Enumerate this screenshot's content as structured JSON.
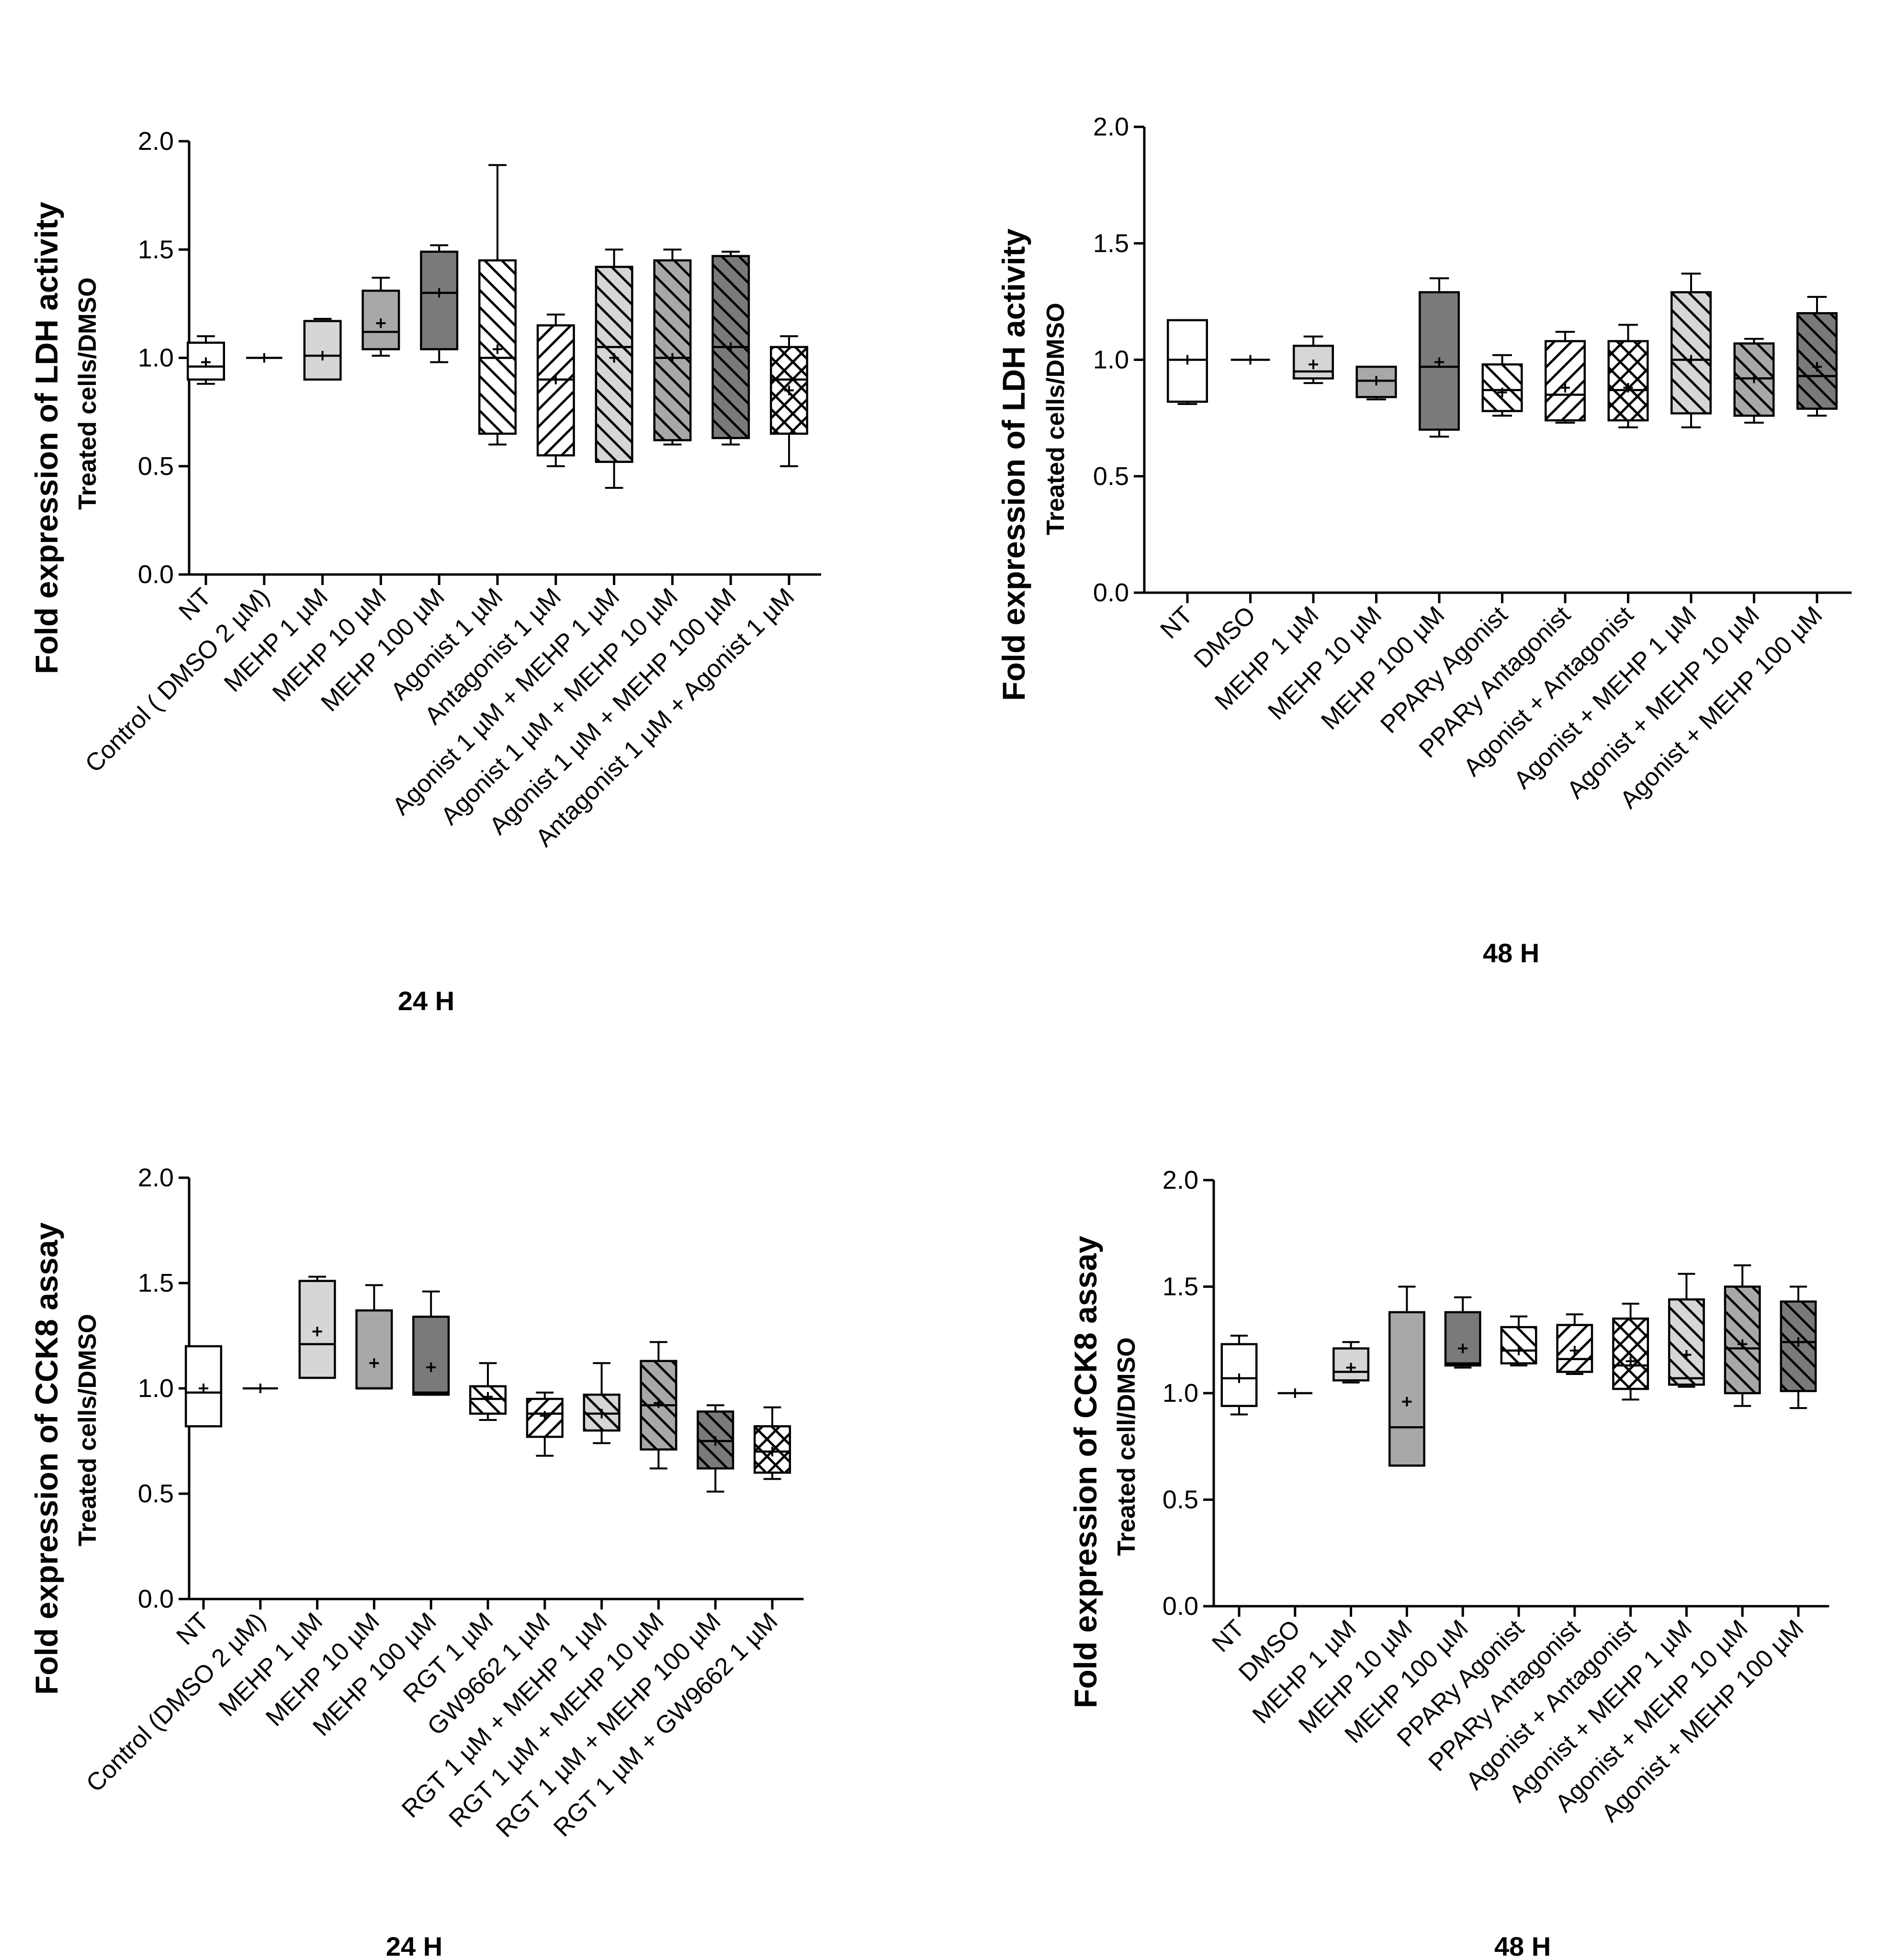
{
  "colors": {
    "white": "#ffffff",
    "light": "#d6d6d6",
    "mid": "#a8a8a8",
    "dark": "#7a7a7a",
    "stroke": "#000000"
  },
  "chart_data": [
    {
      "type": "box",
      "title": "",
      "ylabel_main": "Fold expression of  LDH activity",
      "ylabel_sub": "Treated cells/DMSO",
      "xlabel": "24 H",
      "ylim": [
        0,
        2
      ],
      "yticks": [
        "0.0",
        "0.5",
        "1.0",
        "1.5",
        "2.0"
      ],
      "boxes": [
        {
          "label": "NT",
          "min": 0.88,
          "q1": 0.9,
          "median": 0.96,
          "q3": 1.07,
          "max": 1.1,
          "mean": 0.98,
          "fill": "white",
          "pattern": "none"
        },
        {
          "label": "Control ( DMSO 2 µM)",
          "min": 1.0,
          "q1": 1.0,
          "median": 1.0,
          "q3": 1.0,
          "max": 1.0,
          "mean": 1.0,
          "fill": "white",
          "pattern": "none"
        },
        {
          "label": "MEHP 1 µM",
          "min": 0.9,
          "q1": 0.9,
          "median": 1.01,
          "q3": 1.17,
          "max": 1.18,
          "mean": 1.01,
          "fill": "light",
          "pattern": "none"
        },
        {
          "label": "MEHP 10 µM",
          "min": 1.01,
          "q1": 1.04,
          "median": 1.12,
          "q3": 1.31,
          "max": 1.37,
          "mean": 1.16,
          "fill": "mid",
          "pattern": "none"
        },
        {
          "label": "MEHP 100 µM",
          "min": 0.98,
          "q1": 1.04,
          "median": 1.3,
          "q3": 1.49,
          "max": 1.52,
          "mean": 1.3,
          "fill": "dark",
          "pattern": "none"
        },
        {
          "label": "Agonist 1 µM",
          "min": 0.6,
          "q1": 0.65,
          "median": 1.0,
          "q3": 1.45,
          "max": 1.89,
          "mean": 1.04,
          "fill": "white",
          "pattern": "back"
        },
        {
          "label": "Antagonist 1 µM",
          "min": 0.5,
          "q1": 0.55,
          "median": 0.9,
          "q3": 1.15,
          "max": 1.2,
          "mean": 0.9,
          "fill": "white",
          "pattern": "fwd"
        },
        {
          "label": "Agonist 1 µM + MEHP 1 µM",
          "min": 0.4,
          "q1": 0.52,
          "median": 1.05,
          "q3": 1.42,
          "max": 1.5,
          "mean": 1.0,
          "fill": "light",
          "pattern": "back"
        },
        {
          "label": "Agonist 1 µM + MEHP 10 µM",
          "min": 0.6,
          "q1": 0.62,
          "median": 1.0,
          "q3": 1.45,
          "max": 1.5,
          "mean": 1.0,
          "fill": "mid",
          "pattern": "back"
        },
        {
          "label": "Agonist 1 µM + MEHP 100 µM",
          "min": 0.6,
          "q1": 0.63,
          "median": 1.05,
          "q3": 1.47,
          "max": 1.49,
          "mean": 1.05,
          "fill": "dark",
          "pattern": "back"
        },
        {
          "label": "Antagonist 1 µM + Agonist 1 µM",
          "min": 0.5,
          "q1": 0.65,
          "median": 0.9,
          "q3": 1.05,
          "max": 1.1,
          "mean": 0.85,
          "fill": "white",
          "pattern": "cross"
        }
      ]
    },
    {
      "type": "box",
      "title": "",
      "ylabel_main": "Fold expression of  LDH activity",
      "ylabel_sub": "Treated cells/DMSO",
      "xlabel": "48 H",
      "ylim": [
        0,
        2
      ],
      "yticks": [
        "0.0",
        "0.5",
        "1.0",
        "1.5",
        "2.0"
      ],
      "boxes": [
        {
          "label": "NT",
          "min": 0.81,
          "q1": 0.82,
          "median": 1.0,
          "q3": 1.17,
          "max": 1.17,
          "mean": 1.0,
          "fill": "white",
          "pattern": "none"
        },
        {
          "label": "DMSO",
          "min": 1.0,
          "q1": 1.0,
          "median": 1.0,
          "q3": 1.0,
          "max": 1.0,
          "mean": 1.0,
          "fill": "white",
          "pattern": "none"
        },
        {
          "label": "MEHP 1 µM",
          "min": 0.9,
          "q1": 0.92,
          "median": 0.95,
          "q3": 1.06,
          "max": 1.1,
          "mean": 0.98,
          "fill": "light",
          "pattern": "none"
        },
        {
          "label": "MEHP 10 µM",
          "min": 0.83,
          "q1": 0.84,
          "median": 0.91,
          "q3": 0.97,
          "max": 0.97,
          "mean": 0.91,
          "fill": "mid",
          "pattern": "none"
        },
        {
          "label": "MEHP 100 µM",
          "min": 0.67,
          "q1": 0.7,
          "median": 0.97,
          "q3": 1.29,
          "max": 1.35,
          "mean": 0.99,
          "fill": "dark",
          "pattern": "none"
        },
        {
          "label": "PPARy Agonist",
          "min": 0.76,
          "q1": 0.78,
          "median": 0.87,
          "q3": 0.98,
          "max": 1.02,
          "mean": 0.86,
          "fill": "white",
          "pattern": "back"
        },
        {
          "label": "PPARy Antagonist",
          "min": 0.73,
          "q1": 0.74,
          "median": 0.85,
          "q3": 1.08,
          "max": 1.12,
          "mean": 0.88,
          "fill": "white",
          "pattern": "fwd"
        },
        {
          "label": "Agonist + Antagonist",
          "min": 0.71,
          "q1": 0.74,
          "median": 0.87,
          "q3": 1.08,
          "max": 1.15,
          "mean": 0.88,
          "fill": "white",
          "pattern": "cross"
        },
        {
          "label": "Agonist + MEHP 1 µM",
          "min": 0.71,
          "q1": 0.77,
          "median": 1.0,
          "q3": 1.29,
          "max": 1.37,
          "mean": 1.0,
          "fill": "light",
          "pattern": "back"
        },
        {
          "label": "Agonist + MEHP 10 µM",
          "min": 0.73,
          "q1": 0.76,
          "median": 0.92,
          "q3": 1.07,
          "max": 1.09,
          "mean": 0.92,
          "fill": "mid",
          "pattern": "back"
        },
        {
          "label": "Agonist + MEHP 100 µM",
          "min": 0.76,
          "q1": 0.79,
          "median": 0.93,
          "q3": 1.2,
          "max": 1.27,
          "mean": 0.97,
          "fill": "dark",
          "pattern": "back"
        }
      ]
    },
    {
      "type": "box",
      "title": "",
      "ylabel_main": "Fold expression of  CCK8 assay",
      "ylabel_sub": "Treated cells/DMSO",
      "xlabel": "24 H",
      "ylim": [
        0,
        2
      ],
      "yticks": [
        "0.0",
        "0.5",
        "1.0",
        "1.5",
        "2.0"
      ],
      "boxes": [
        {
          "label": "NT",
          "min": 0.82,
          "q1": 0.82,
          "median": 0.98,
          "q3": 1.2,
          "max": 1.2,
          "mean": 1.0,
          "fill": "white",
          "pattern": "none"
        },
        {
          "label": "Control (DMSO 2 µM)",
          "min": 1.0,
          "q1": 1.0,
          "median": 1.0,
          "q3": 1.0,
          "max": 1.0,
          "mean": 1.0,
          "fill": "white",
          "pattern": "none"
        },
        {
          "label": "MEHP 1 µM",
          "min": 1.05,
          "q1": 1.05,
          "median": 1.21,
          "q3": 1.51,
          "max": 1.53,
          "mean": 1.27,
          "fill": "light",
          "pattern": "none"
        },
        {
          "label": "MEHP 10 µM",
          "min": 1.0,
          "q1": 1.0,
          "median": 1.0,
          "q3": 1.37,
          "max": 1.49,
          "mean": 1.12,
          "fill": "mid",
          "pattern": "none"
        },
        {
          "label": "MEHP 100 µM",
          "min": 0.97,
          "q1": 0.97,
          "median": 0.98,
          "q3": 1.34,
          "max": 1.46,
          "mean": 1.1,
          "fill": "dark",
          "pattern": "none"
        },
        {
          "label": "RGT 1 µM",
          "min": 0.85,
          "q1": 0.88,
          "median": 0.95,
          "q3": 1.01,
          "max": 1.12,
          "mean": 0.96,
          "fill": "white",
          "pattern": "back"
        },
        {
          "label": "GW9662 1 µM",
          "min": 0.68,
          "q1": 0.77,
          "median": 0.88,
          "q3": 0.95,
          "max": 0.98,
          "mean": 0.87,
          "fill": "white",
          "pattern": "fwd"
        },
        {
          "label": "RGT 1 µM + MEHP 1 µM",
          "min": 0.74,
          "q1": 0.8,
          "median": 0.88,
          "q3": 0.97,
          "max": 1.12,
          "mean": 0.88,
          "fill": "light",
          "pattern": "back"
        },
        {
          "label": "RGT 1 µM + MEHP 10 µM",
          "min": 0.62,
          "q1": 0.71,
          "median": 0.92,
          "q3": 1.13,
          "max": 1.22,
          "mean": 0.93,
          "fill": "mid",
          "pattern": "back"
        },
        {
          "label": "RGT 1 µM + MEHP 100 µM",
          "min": 0.51,
          "q1": 0.62,
          "median": 0.75,
          "q3": 0.89,
          "max": 0.92,
          "mean": 0.75,
          "fill": "dark",
          "pattern": "back"
        },
        {
          "label": "RGT 1 µM + GW9662 1 µM",
          "min": 0.57,
          "q1": 0.6,
          "median": 0.7,
          "q3": 0.82,
          "max": 0.91,
          "mean": 0.7,
          "fill": "white",
          "pattern": "cross"
        }
      ]
    },
    {
      "type": "box",
      "title": "",
      "ylabel_main": "Fold expression of CCK8 assay",
      "ylabel_sub": "Treated cell/DMSO",
      "xlabel": "48 H",
      "ylim": [
        0,
        2
      ],
      "yticks": [
        "0.0",
        "0.5",
        "1.0",
        "1.5",
        "2.0"
      ],
      "boxes": [
        {
          "label": "NT",
          "min": 0.9,
          "q1": 0.94,
          "median": 1.07,
          "q3": 1.23,
          "max": 1.27,
          "mean": 1.07,
          "fill": "white",
          "pattern": "none"
        },
        {
          "label": "DMSO",
          "min": 1.0,
          "q1": 1.0,
          "median": 1.0,
          "q3": 1.0,
          "max": 1.0,
          "mean": 1.0,
          "fill": "white",
          "pattern": "none"
        },
        {
          "label": "MEHP 1 µM",
          "min": 1.05,
          "q1": 1.06,
          "median": 1.1,
          "q3": 1.21,
          "max": 1.24,
          "mean": 1.12,
          "fill": "light",
          "pattern": "none"
        },
        {
          "label": "MEHP 10 µM",
          "min": 0.66,
          "q1": 0.66,
          "median": 0.84,
          "q3": 1.38,
          "max": 1.5,
          "mean": 0.96,
          "fill": "mid",
          "pattern": "none"
        },
        {
          "label": "MEHP 100 µM",
          "min": 1.12,
          "q1": 1.13,
          "median": 1.14,
          "q3": 1.38,
          "max": 1.45,
          "mean": 1.21,
          "fill": "dark",
          "pattern": "none"
        },
        {
          "label": "PPARy Agonist",
          "min": 1.13,
          "q1": 1.14,
          "median": 1.2,
          "q3": 1.31,
          "max": 1.36,
          "mean": 1.2,
          "fill": "white",
          "pattern": "back"
        },
        {
          "label": "PPARy Antagonist",
          "min": 1.09,
          "q1": 1.1,
          "median": 1.16,
          "q3": 1.32,
          "max": 1.37,
          "mean": 1.2,
          "fill": "white",
          "pattern": "fwd"
        },
        {
          "label": "Agonist + Antagonist",
          "min": 0.97,
          "q1": 1.02,
          "median": 1.13,
          "q3": 1.35,
          "max": 1.42,
          "mean": 1.15,
          "fill": "white",
          "pattern": "cross"
        },
        {
          "label": "Agonist + MEHP 1 µM",
          "min": 1.03,
          "q1": 1.04,
          "median": 1.07,
          "q3": 1.44,
          "max": 1.56,
          "mean": 1.18,
          "fill": "light",
          "pattern": "back"
        },
        {
          "label": "Agonist + MEHP 10 µM",
          "min": 0.94,
          "q1": 1.0,
          "median": 1.21,
          "q3": 1.5,
          "max": 1.6,
          "mean": 1.23,
          "fill": "mid",
          "pattern": "back"
        },
        {
          "label": "Agonist + MEHP 100 µM",
          "min": 0.93,
          "q1": 1.01,
          "median": 1.24,
          "q3": 1.43,
          "max": 1.5,
          "mean": 1.24,
          "fill": "dark",
          "pattern": "back"
        }
      ]
    }
  ]
}
